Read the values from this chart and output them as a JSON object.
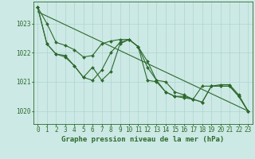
{
  "bg_color": "#cce9e5",
  "grid_color": "#aed4cf",
  "line_color": "#2d6a2d",
  "marker_color": "#2d6a2d",
  "xlabel": "Graphe pression niveau de la mer (hPa)",
  "xlabel_fontsize": 6.5,
  "tick_fontsize": 5.5,
  "ytick_labels": [
    1020,
    1021,
    1022,
    1023
  ],
  "ylim": [
    1019.55,
    1023.75
  ],
  "xlim": [
    -0.5,
    23.5
  ],
  "xticks": [
    0,
    1,
    2,
    3,
    4,
    5,
    6,
    7,
    8,
    9,
    10,
    11,
    12,
    13,
    14,
    15,
    16,
    17,
    18,
    19,
    20,
    21,
    22,
    23
  ],
  "series1_y": [
    1023.55,
    1023.0,
    1022.35,
    1022.25,
    1022.1,
    1021.85,
    1021.9,
    1022.3,
    1022.4,
    1022.45,
    1022.45,
    1022.2,
    1021.7,
    1021.05,
    1021.0,
    1020.65,
    1020.55,
    1020.4,
    1020.85,
    1020.85,
    1020.9,
    1020.9,
    1020.55,
    1020.0
  ],
  "series2_y": [
    1023.55,
    1022.3,
    1021.95,
    1021.85,
    1021.55,
    1021.15,
    1021.5,
    1021.05,
    1021.35,
    1022.3,
    1022.45,
    1022.2,
    1021.05,
    1021.0,
    1020.65,
    1020.5,
    1020.45,
    1020.4,
    1020.3,
    1020.85,
    1020.85,
    1020.85,
    1020.5,
    1020.0
  ],
  "series3_y": [
    1023.55,
    1022.3,
    1021.95,
    1021.9,
    1021.55,
    1021.15,
    1021.05,
    1021.4,
    1022.0,
    1022.35,
    1022.45,
    1022.2,
    1021.5,
    1021.05,
    1020.65,
    1020.5,
    1020.5,
    1020.4,
    1020.3,
    1020.85,
    1020.85,
    1020.85,
    1020.5,
    1020.0
  ],
  "trend_x": [
    0,
    23
  ],
  "trend_y": [
    1023.4,
    1020.0
  ]
}
